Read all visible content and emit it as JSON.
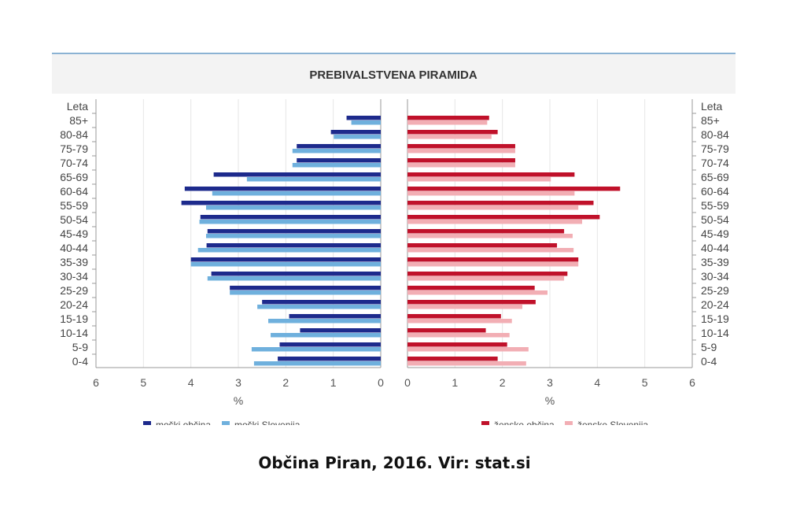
{
  "caption": "Občina Piran, 2016. Vir: stat.si",
  "chart_data": {
    "type": "bar",
    "orientation": "horizontal",
    "layout": "population-pyramid",
    "title": "PREBIVALSTVENA PIRAMIDA",
    "category_axis_label": "Leta",
    "xlabel": "%",
    "xlim": [
      0,
      6
    ],
    "x_ticks": [
      6,
      5,
      4,
      3,
      2,
      1,
      0
    ],
    "x_ticks_right": [
      0,
      1,
      2,
      3,
      4,
      5,
      6
    ],
    "grid": true,
    "legend_position": "bottom",
    "categories": [
      "85+",
      "80-84",
      "75-79",
      "70-74",
      "65-69",
      "60-64",
      "55-59",
      "50-54",
      "45-49",
      "40-44",
      "35-39",
      "30-34",
      "25-29",
      "20-24",
      "15-19",
      "10-14",
      "5-9",
      "0-4"
    ],
    "series": [
      {
        "name": "moški občina",
        "side": "left",
        "color": "#1d2a8c",
        "values": [
          0.72,
          1.05,
          1.77,
          1.77,
          3.52,
          4.13,
          4.2,
          3.8,
          3.65,
          3.67,
          4.0,
          3.57,
          3.18,
          2.5,
          1.93,
          1.7,
          2.13,
          2.17
        ]
      },
      {
        "name": "moški Slovenija",
        "side": "left",
        "color": "#6fb0dd",
        "values": [
          0.62,
          0.99,
          1.86,
          1.86,
          2.82,
          3.55,
          3.68,
          3.82,
          3.68,
          3.85,
          4.0,
          3.65,
          3.18,
          2.6,
          2.37,
          2.32,
          2.72,
          2.67
        ]
      },
      {
        "name": "ženske občina",
        "side": "right",
        "color": "#c0112a",
        "values": [
          1.72,
          1.9,
          2.27,
          2.27,
          3.52,
          4.48,
          3.92,
          4.05,
          3.3,
          3.15,
          3.6,
          3.37,
          2.68,
          2.7,
          1.97,
          1.65,
          2.1,
          1.9
        ]
      },
      {
        "name": "ženske Slovenija",
        "side": "right",
        "color": "#f2aeb4",
        "values": [
          1.68,
          1.77,
          2.27,
          2.27,
          3.02,
          3.52,
          3.6,
          3.68,
          3.48,
          3.5,
          3.6,
          3.3,
          2.95,
          2.42,
          2.2,
          2.15,
          2.55,
          2.5
        ]
      }
    ]
  }
}
